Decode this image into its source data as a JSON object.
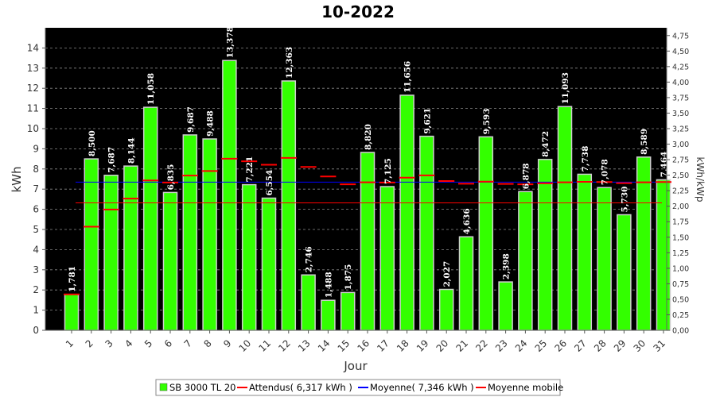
{
  "chart_data": {
    "type": "bar",
    "title": "10-2022",
    "xlabel": "Jour",
    "ylabel": "kWh",
    "y2label": "kWh/kWp",
    "ylim": [
      0,
      15
    ],
    "y2lim": [
      0,
      4.875
    ],
    "yticks": [
      "0",
      "1",
      "2",
      "3",
      "4",
      "5",
      "6",
      "7",
      "8",
      "9",
      "10",
      "11",
      "12",
      "13",
      "14"
    ],
    "y2ticks": [
      "0,00",
      "0,25",
      "0,50",
      "0,75",
      "1,00",
      "1,25",
      "1,50",
      "1,75",
      "2,00",
      "2,25",
      "2,50",
      "2,75",
      "3,00",
      "3,25",
      "3,50",
      "3,75",
      "4,00",
      "4,25",
      "4,50",
      "4,75"
    ],
    "categories": [
      "1",
      "2",
      "3",
      "4",
      "5",
      "6",
      "7",
      "8",
      "9",
      "10",
      "11",
      "12",
      "13",
      "14",
      "15",
      "16",
      "17",
      "18",
      "19",
      "20",
      "21",
      "22",
      "23",
      "24",
      "25",
      "26",
      "27",
      "28",
      "29",
      "30",
      "31"
    ],
    "background": "#000000",
    "grid": true,
    "legend_position": "bottom",
    "series": [
      {
        "name": "SB 3000 TL 20",
        "kind": "bar",
        "color": "#33ff00",
        "values": [
          1.781,
          8.5,
          7.687,
          8.144,
          11.058,
          6.835,
          9.687,
          9.488,
          13.378,
          7.221,
          6.554,
          12.363,
          2.746,
          1.488,
          1.875,
          8.82,
          7.125,
          11.656,
          9.621,
          2.027,
          4.636,
          9.593,
          2.398,
          6.878,
          8.472,
          11.093,
          7.738,
          7.078,
          5.73,
          8.589,
          7.464
        ],
        "labels": [
          "1,781",
          "8,500",
          "7,687",
          "8,144",
          "11,058",
          "6,835",
          "9,687",
          "9,488",
          "13,378",
          "7,221",
          "6,554",
          "12,363",
          "2,746",
          "1,488",
          "1,875",
          "8,820",
          "7,125",
          "11,656",
          "9,621",
          "2,027",
          "4,636",
          "9,593",
          "2,398",
          "6,878",
          "8,472",
          "11,093",
          "7,738",
          "7,078",
          "5,730",
          "8,589",
          "7,464"
        ]
      },
      {
        "name": "Attendus( 6,317 kWh )",
        "kind": "hline",
        "color": "#ff0000",
        "value": 6.317
      },
      {
        "name": "Moyenne( 7,346 kWh )",
        "kind": "hline",
        "color": "#0000ff",
        "value": 7.346
      },
      {
        "name": "Moyenne mobile",
        "kind": "marker",
        "color": "#ff0000",
        "values": [
          1.78,
          5.14,
          5.99,
          6.53,
          7.43,
          7.33,
          7.67,
          7.9,
          8.51,
          8.38,
          8.21,
          8.55,
          8.1,
          7.63,
          7.24,
          7.34,
          7.33,
          7.57,
          7.68,
          7.4,
          7.27,
          7.37,
          7.26,
          7.24,
          7.29,
          7.34,
          7.36,
          7.35,
          7.3,
          7.34,
          7.35
        ]
      }
    ]
  }
}
